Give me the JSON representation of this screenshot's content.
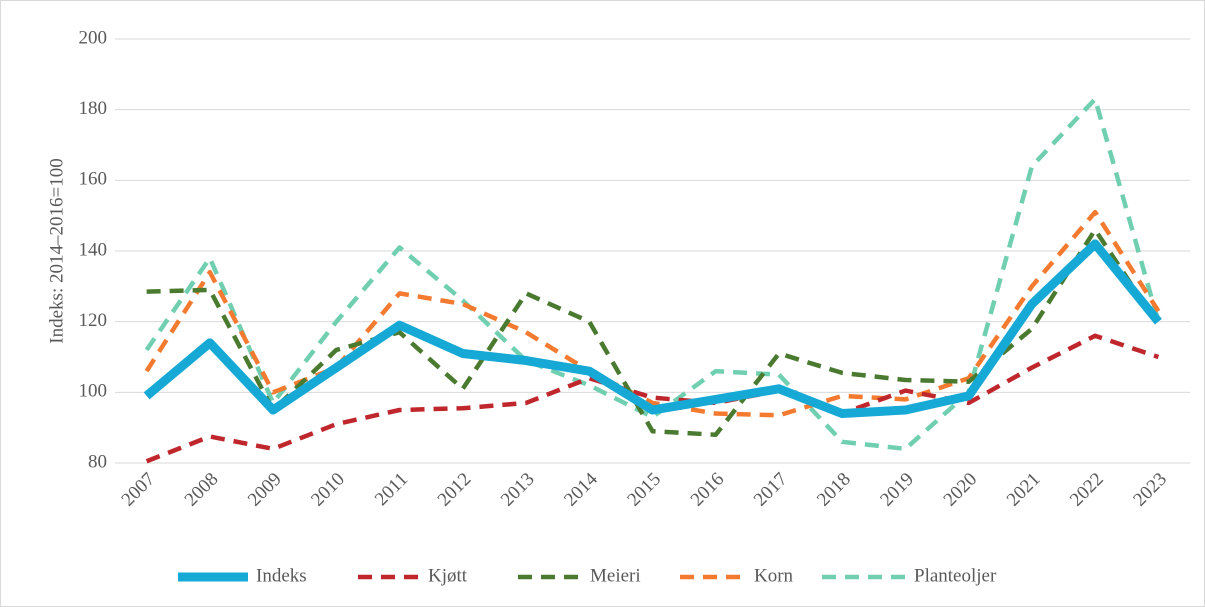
{
  "chart_data": {
    "type": "line",
    "y_label": "Indeks: 2014–2016=100",
    "categories": [
      "2007",
      "2008",
      "2009",
      "2010",
      "2011",
      "2012",
      "2013",
      "2014",
      "2015",
      "2016",
      "2017",
      "2018",
      "2019",
      "2020",
      "2021",
      "2022",
      "2023"
    ],
    "series": [
      {
        "name": "Indeks",
        "color": "#16a9d6",
        "dashed": false,
        "values": [
          99,
          114,
          95,
          107,
          119,
          111,
          109,
          106,
          95,
          98,
          101,
          94,
          95,
          99,
          125,
          142,
          120
        ]
      },
      {
        "name": "Kjøtt",
        "color": "#c0272d",
        "dashed": true,
        "values": [
          80.5,
          87.5,
          84,
          91,
          95,
          95.5,
          97,
          104,
          98.5,
          97,
          100.5,
          94,
          100.5,
          97,
          107,
          116,
          110
        ]
      },
      {
        "name": "Meieri",
        "color": "#4a7a2f",
        "dashed": true,
        "values": [
          128.5,
          129,
          95,
          112,
          117,
          101,
          128,
          120,
          89,
          88,
          111,
          105.5,
          103.5,
          103,
          118,
          146,
          119
        ]
      },
      {
        "name": "Korn",
        "color": "#f47a30",
        "dashed": true,
        "values": [
          106,
          134,
          100,
          107,
          128,
          125,
          117,
          106,
          97,
          94,
          93.5,
          99,
          98,
          104,
          130,
          151,
          123
        ]
      },
      {
        "name": "Planteoljer",
        "color": "#70cfb0",
        "dashed": true,
        "values": [
          112,
          138,
          97,
          120,
          141,
          126,
          109,
          102,
          93,
          106,
          105,
          86,
          84,
          100,
          164,
          183,
          120
        ]
      }
    ],
    "ylim": [
      80,
      200
    ],
    "yticks": [
      80,
      100,
      120,
      140,
      160,
      180,
      200
    ],
    "grid": true,
    "legend": "bottom"
  }
}
